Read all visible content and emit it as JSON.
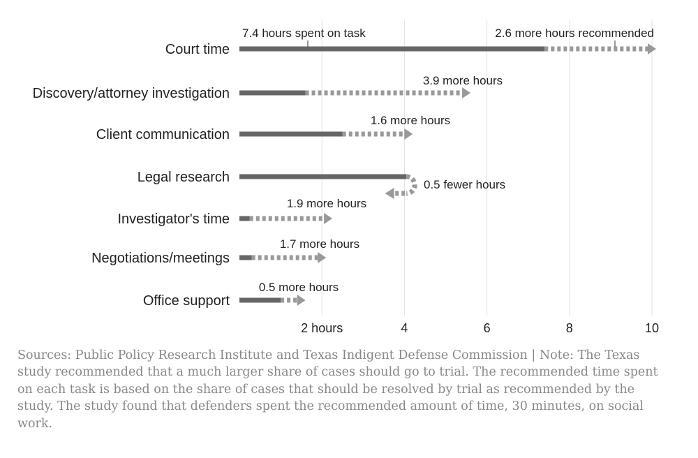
{
  "chart_data": {
    "type": "bar",
    "orientation": "horizontal",
    "xlim": [
      0,
      10
    ],
    "x_ticks": [
      {
        "value": 2,
        "label": "2 hours"
      },
      {
        "value": 4,
        "label": "4"
      },
      {
        "value": 6,
        "label": "6"
      },
      {
        "value": 8,
        "label": "8"
      },
      {
        "value": 10,
        "label": "10"
      }
    ],
    "grid": true,
    "legend": "inline annotations",
    "colors": {
      "spent": "#666666",
      "recommended": "#999999",
      "grid": "#e2e2e2"
    },
    "categories": [
      "Court time",
      "Discovery/attorney investigation",
      "Client communication",
      "Legal research",
      "Investigator's time",
      "Negotiations/meetings",
      "Office support"
    ],
    "series": [
      {
        "values": [
          7.4,
          1.6,
          2.5,
          4.2,
          0.25,
          0.3,
          1.0
        ]
      },
      {
        "values": [
          2.6,
          3.9,
          1.6,
          -0.5,
          1.9,
          1.7,
          0.5
        ]
      }
    ],
    "annotations": [
      "7.4 hours spent on task",
      "2.6 more hours recommended",
      "3.9 more hours",
      "1.6 more hours",
      "0.5 fewer hours",
      "1.9 more hours",
      "1.7 more hours",
      "0.5 more hours"
    ]
  },
  "footer": {
    "note": "Sources: Public Policy Research Institute and Texas Indigent Defense Commission | Note: The Texas study recommended that a much larger share of cases should go to trial. The recommended time spent on each task is based on the share of cases that should be resolved by trial as recommended by the study. The study found that defenders spent the recommended amount of time, 30 minutes, on social work."
  }
}
